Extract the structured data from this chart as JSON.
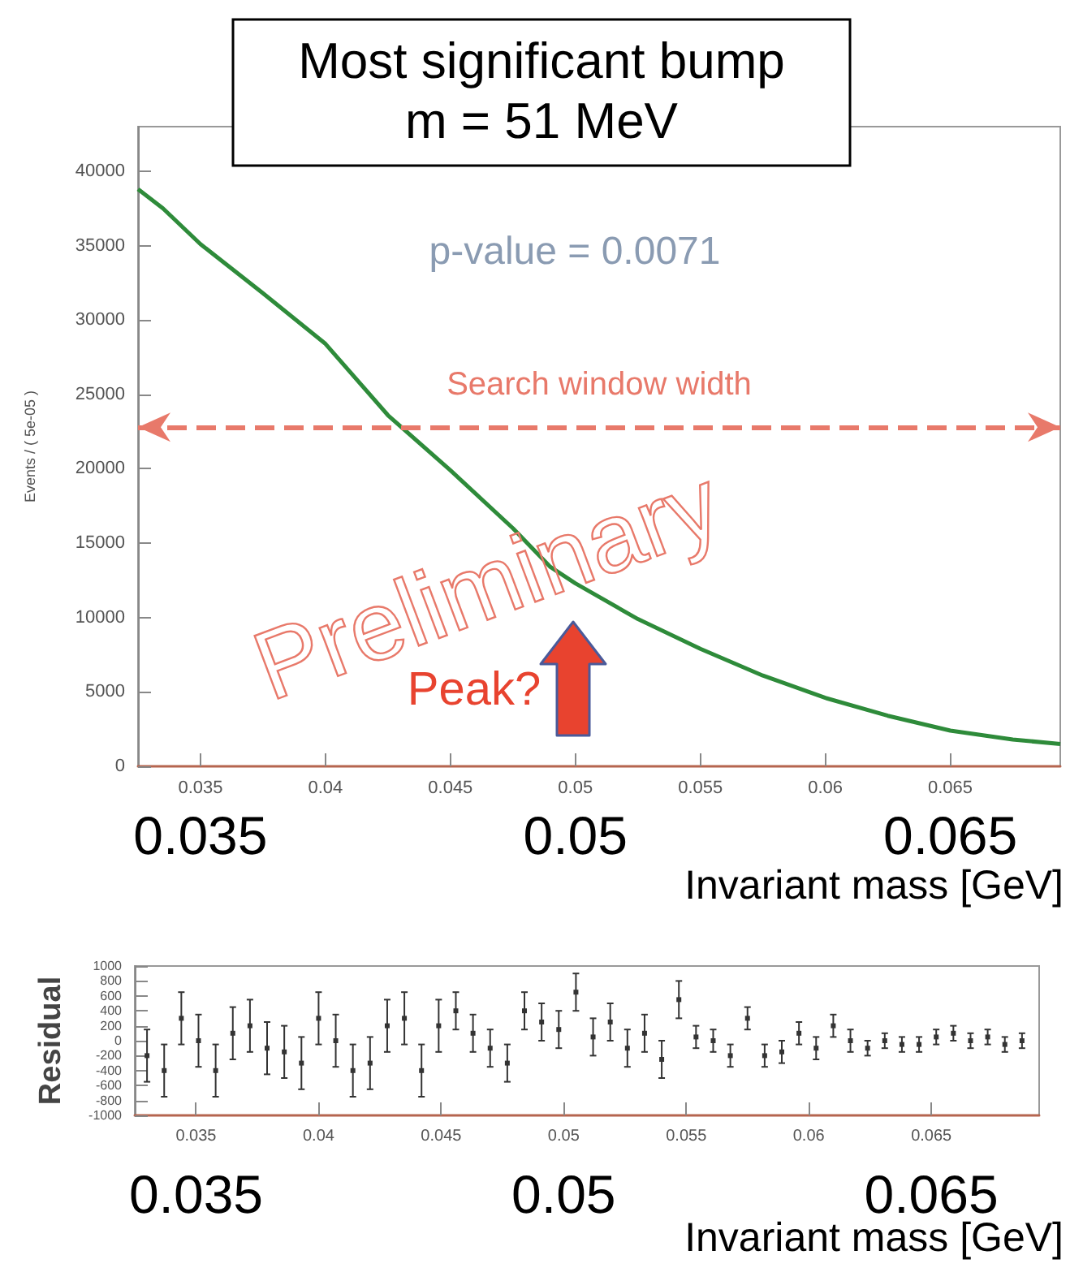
{
  "chart_data": [
    {
      "type": "line",
      "title": "Most significant bump",
      "subtitle": "m = 51 MeV",
      "ylabel": "Events / ( 5e-05 )",
      "xlabel": "Invariant mass [GeV]",
      "annotations": [
        "p-value = 0.0071",
        "Preliminary",
        "Peak?"
      ],
      "ref_lines": [
        {
          "axis": "y",
          "value": 22800,
          "label": "Search window width",
          "color": "#e8796a",
          "line_style": "dashed"
        }
      ],
      "x": [
        0.0325,
        0.0335,
        0.035,
        0.0375,
        0.04,
        0.0425,
        0.045,
        0.0475,
        0.049,
        0.05,
        0.0525,
        0.055,
        0.0575,
        0.06,
        0.0625,
        0.065,
        0.0675,
        0.0694
      ],
      "series": [
        {
          "color": "#2e8b3a",
          "values": [
            38800,
            37500,
            35100,
            31800,
            28400,
            23600,
            19900,
            16000,
            13400,
            12300,
            9900,
            7900,
            6100,
            4600,
            3400,
            2400,
            1800,
            1500
          ]
        }
      ],
      "marker": "none",
      "xlim": [
        0.0325,
        0.0694
      ],
      "xticks": [
        0.035,
        0.04,
        0.045,
        0.05,
        0.055,
        0.06,
        0.065
      ],
      "x2lim": [
        0.0325,
        0.0694
      ],
      "x2ticks": [
        0.035,
        0.05,
        0.065
      ],
      "ylim": [
        0,
        43000
      ],
      "yticks": [
        0,
        5000,
        10000,
        15000,
        20000,
        25000,
        30000,
        35000,
        40000
      ]
    },
    {
      "type": "scatter",
      "ylabel": "Residual",
      "xlabel": "Invariant mass [GeV]",
      "color": "#333333",
      "x": [
        0.033,
        0.0337,
        0.0344,
        0.0351,
        0.0358,
        0.0365,
        0.0372,
        0.0379,
        0.0386,
        0.0393,
        0.04,
        0.0407,
        0.0414,
        0.0421,
        0.0428,
        0.0435,
        0.0442,
        0.0449,
        0.0456,
        0.0463,
        0.047,
        0.0477,
        0.0484,
        0.0491,
        0.0498,
        0.0505,
        0.0512,
        0.0519,
        0.0526,
        0.0533,
        0.054,
        0.0547,
        0.0554,
        0.0561,
        0.0568,
        0.0575,
        0.0582,
        0.0589,
        0.0596,
        0.0603,
        0.061,
        0.0617,
        0.0624,
        0.0631,
        0.0638,
        0.0645,
        0.0652,
        0.0659,
        0.0666,
        0.0673,
        0.068,
        0.0687
      ],
      "values": [
        -200,
        -400,
        300,
        0,
        -400,
        100,
        200,
        -100,
        -150,
        -300,
        300,
        0,
        -400,
        -300,
        200,
        300,
        -400,
        200,
        400,
        100,
        -100,
        -300,
        400,
        250,
        150,
        650,
        50,
        250,
        -100,
        100,
        -250,
        550,
        50,
        0,
        -200,
        300,
        -200,
        -150,
        100,
        -100,
        200,
        0,
        -100,
        0,
        -50,
        -50,
        50,
        100,
        0,
        50,
        -50,
        0
      ],
      "errors": [
        350,
        350,
        350,
        350,
        350,
        350,
        350,
        350,
        350,
        350,
        350,
        350,
        350,
        350,
        350,
        350,
        350,
        350,
        250,
        250,
        250,
        250,
        250,
        250,
        250,
        250,
        250,
        250,
        250,
        250,
        250,
        250,
        150,
        150,
        150,
        150,
        150,
        150,
        150,
        150,
        150,
        150,
        100,
        100,
        100,
        100,
        100,
        100,
        100,
        100,
        100,
        100
      ],
      "xlim": [
        0.0325,
        0.0694
      ],
      "xticks": [
        0.035,
        0.04,
        0.045,
        0.05,
        0.055,
        0.06,
        0.065
      ],
      "x2lim": [
        0.0325,
        0.0694
      ],
      "x2ticks": [
        0.035,
        0.05,
        0.065
      ],
      "ylim": [
        -1000,
        1000
      ],
      "yticks": [
        -1000,
        -800,
        -600,
        -400,
        -200,
        0,
        200,
        400,
        600,
        800,
        1000
      ]
    }
  ]
}
